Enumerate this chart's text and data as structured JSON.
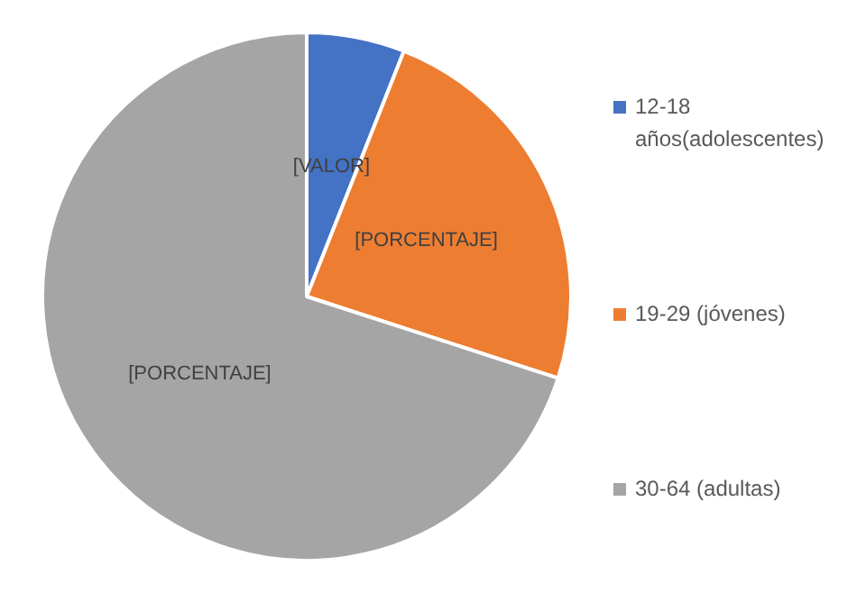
{
  "chart_data": {
    "type": "pie",
    "categories": [
      "12-18 años(adolescentes)",
      "19-29 (jóvenes)",
      "30-64 (adultas)"
    ],
    "values": [
      6,
      24,
      70
    ],
    "colors": [
      "#4472c4",
      "#ed7d31",
      "#a5a5a5"
    ],
    "value_labels": [
      "[VALOR]",
      "[PORCENTAJE]",
      "[PORCENTAJE]"
    ],
    "legend": "right"
  }
}
